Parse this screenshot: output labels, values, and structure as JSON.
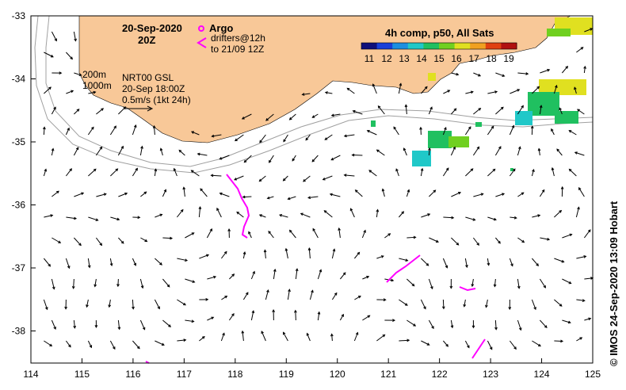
{
  "header": {
    "date": "20-Sep-2020",
    "hour": "20Z"
  },
  "legend": {
    "argo": "Argo",
    "drifters_line1": "drifters@12h",
    "drifters_line2": "to 21/09 12Z",
    "depth_200": "200m",
    "depth_1000": "1000m",
    "product": "NRT00 GSL",
    "product_time": "20-Sep 18:00Z",
    "vector_scale": "0.5m/s (1kt 24h)"
  },
  "sst_colorbar": {
    "title": "4h comp, p50, All Sats",
    "ticks": [
      "11",
      "12",
      "13",
      "14",
      "15",
      "16",
      "17",
      "18",
      "19"
    ],
    "colors": [
      "#10107a",
      "#1a3fd8",
      "#1c8fe0",
      "#20c8c8",
      "#20c060",
      "#70d020",
      "#e0e020",
      "#f0a020",
      "#e04010",
      "#b01010"
    ]
  },
  "map": {
    "lon_ticks": [
      "114",
      "115",
      "116",
      "117",
      "118",
      "119",
      "120",
      "121",
      "122",
      "123",
      "124",
      "125"
    ],
    "lat_ticks": [
      "-33",
      "-34",
      "-35",
      "-36",
      "-37",
      "-38"
    ],
    "land_color": "#f8c898",
    "drifter_color": "#ff00ff",
    "arrow_color": "#000000"
  },
  "credit": "© IMOS 24-Sep-2020 13:09 Hobart"
}
